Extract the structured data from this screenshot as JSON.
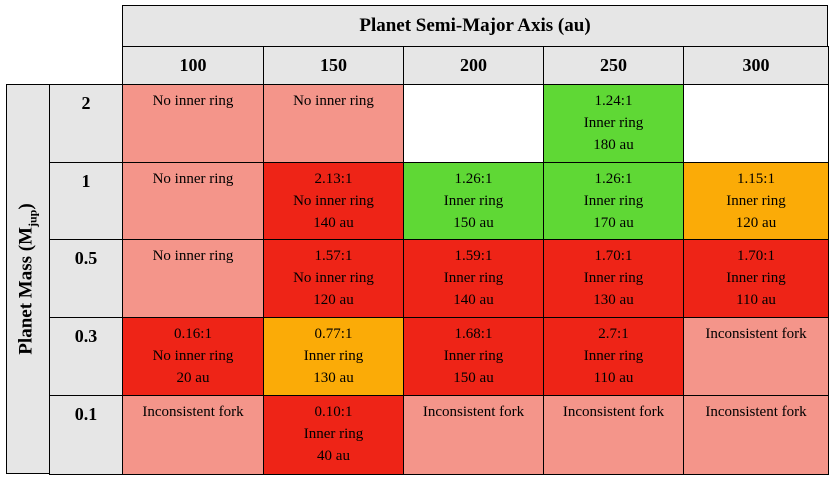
{
  "x_axis_title": "Planet Semi-Major Axis (au)",
  "y_axis_title": {
    "prefix": "Planet Mass (M",
    "sub": "jup",
    "suffix": ")"
  },
  "columns": [
    "100",
    "150",
    "200",
    "250",
    "300"
  ],
  "rows": [
    {
      "label": "2",
      "cells": [
        {
          "status": "none",
          "color": "#f4958a",
          "lines": [
            "No inner ring"
          ]
        },
        {
          "status": "none",
          "color": "#f4958a",
          "lines": [
            "No inner ring"
          ]
        },
        {
          "status": "empty",
          "color": "#ffffff",
          "lines": []
        },
        {
          "status": "inner",
          "color": "#5fd835",
          "lines": [
            "1.24:1",
            "Inner ring",
            "180 au"
          ]
        },
        {
          "status": "empty",
          "color": "#ffffff",
          "lines": []
        }
      ]
    },
    {
      "label": "1",
      "cells": [
        {
          "status": "none",
          "color": "#f4958a",
          "lines": [
            "No inner ring"
          ]
        },
        {
          "status": "red",
          "color": "#ee2417",
          "lines": [
            "2.13:1",
            "No inner ring",
            "140 au"
          ]
        },
        {
          "status": "inner",
          "color": "#5fd835",
          "lines": [
            "1.26:1",
            "Inner ring",
            "150 au"
          ]
        },
        {
          "status": "inner",
          "color": "#5fd835",
          "lines": [
            "1.26:1",
            "Inner ring",
            "170 au"
          ]
        },
        {
          "status": "orange",
          "color": "#fbab07",
          "lines": [
            "1.15:1",
            "Inner ring",
            "120 au"
          ]
        }
      ]
    },
    {
      "label": "0.5",
      "cells": [
        {
          "status": "none",
          "color": "#f4958a",
          "lines": [
            "No inner ring"
          ]
        },
        {
          "status": "red",
          "color": "#ee2417",
          "lines": [
            "1.57:1",
            "No inner ring",
            "120 au"
          ]
        },
        {
          "status": "red",
          "color": "#ee2417",
          "lines": [
            "1.59:1",
            "Inner ring",
            "140 au"
          ]
        },
        {
          "status": "red",
          "color": "#ee2417",
          "lines": [
            "1.70:1",
            "Inner ring",
            "130 au"
          ]
        },
        {
          "status": "red",
          "color": "#ee2417",
          "lines": [
            "1.70:1",
            "Inner ring",
            "110 au"
          ]
        }
      ]
    },
    {
      "label": "0.3",
      "cells": [
        {
          "status": "red",
          "color": "#ee2417",
          "lines": [
            "0.16:1",
            "No inner ring",
            "20 au"
          ]
        },
        {
          "status": "orange",
          "color": "#fbab07",
          "lines": [
            "0.77:1",
            "Inner ring",
            "130 au"
          ]
        },
        {
          "status": "red",
          "color": "#ee2417",
          "lines": [
            "1.68:1",
            "Inner ring",
            "150 au"
          ]
        },
        {
          "status": "red",
          "color": "#ee2417",
          "lines": [
            "2.7:1",
            "Inner ring",
            "110 au"
          ]
        },
        {
          "status": "fork",
          "color": "#f4958a",
          "lines": [
            "Inconsistent fork"
          ]
        }
      ]
    },
    {
      "label": "0.1",
      "cells": [
        {
          "status": "fork",
          "color": "#f4958a",
          "lines": [
            "Inconsistent fork"
          ]
        },
        {
          "status": "red",
          "color": "#ee2417",
          "lines": [
            "0.10:1",
            "Inner ring",
            "40 au"
          ]
        },
        {
          "status": "fork",
          "color": "#f4958a",
          "lines": [
            "Inconsistent fork"
          ]
        },
        {
          "status": "fork",
          "color": "#f4958a",
          "lines": [
            "Inconsistent fork"
          ]
        },
        {
          "status": "fork",
          "color": "#f4958a",
          "lines": [
            "Inconsistent fork"
          ]
        }
      ]
    }
  ]
}
